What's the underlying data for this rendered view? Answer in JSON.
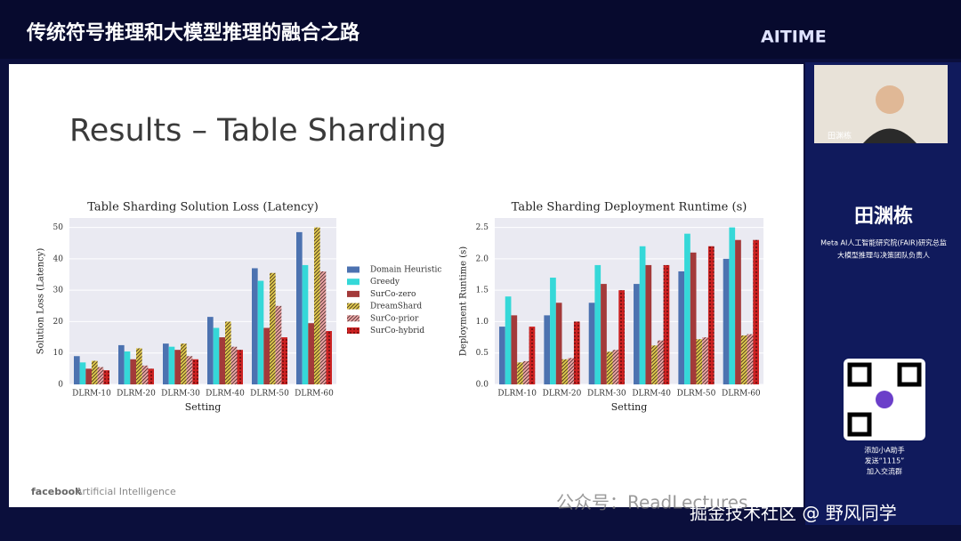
{
  "header": {
    "title": "传统符号推理和大模型推理的融合之路",
    "logo": "AITIME"
  },
  "slide": {
    "title": "Results – Table Sharding",
    "footer_brand": "facebook",
    "footer_text": "Artificial Intelligence"
  },
  "chart_data": [
    {
      "type": "bar",
      "title": "Table Sharding Solution Loss (Latency)",
      "x_label": "Setting",
      "y_label": "Solution Loss (Latency)",
      "categories": [
        "DLRM-10",
        "DLRM-20",
        "DLRM-30",
        "DLRM-40",
        "DLRM-50",
        "DLRM-60"
      ],
      "series": [
        {
          "name": "Domain Heuristic",
          "color": "#4c72b0",
          "values": [
            9,
            12.5,
            13,
            21.5,
            37,
            48.5
          ]
        },
        {
          "name": "Greedy",
          "color": "#35d8d8",
          "values": [
            7,
            10.5,
            12,
            18,
            33,
            38
          ]
        },
        {
          "name": "SurCo-zero",
          "color": "#a33a3a",
          "values": [
            5,
            8,
            11,
            15,
            18,
            19.5
          ]
        },
        {
          "name": "DreamShard",
          "color": "#e2cc4e",
          "hatch": "stripes",
          "values": [
            7.5,
            11.5,
            13,
            20,
            35.5,
            50
          ]
        },
        {
          "name": "SurCo-prior",
          "color": "#f0a8a8",
          "hatch": "stripes",
          "values": [
            5.5,
            6,
            9,
            12,
            25,
            36
          ]
        },
        {
          "name": "SurCo-hybrid",
          "color": "#cc2222",
          "hatch": "dots",
          "values": [
            4.5,
            5,
            8,
            11,
            15,
            17
          ]
        }
      ],
      "ylim": [
        0,
        53
      ],
      "yticks": [
        0,
        10,
        20,
        30,
        40,
        50
      ],
      "legend": "right"
    },
    {
      "type": "bar",
      "title": "Table Sharding Deployment Runtime (s)",
      "x_label": "Setting",
      "y_label": "Deployment Runtime (s)",
      "categories": [
        "DLRM-10",
        "DLRM-20",
        "DLRM-30",
        "DLRM-40",
        "DLRM-50",
        "DLRM-60"
      ],
      "series": [
        {
          "color": "#4c72b0",
          "values": [
            0.92,
            1.1,
            1.3,
            1.6,
            1.8,
            2.0
          ]
        },
        {
          "color": "#35d8d8",
          "values": [
            1.4,
            1.7,
            1.9,
            2.2,
            2.4,
            2.5
          ]
        },
        {
          "color": "#a33a3a",
          "values": [
            1.1,
            1.3,
            1.6,
            1.9,
            2.1,
            2.3
          ]
        },
        {
          "color": "#e2cc4e",
          "hatch": "stripes",
          "values": [
            0.35,
            0.4,
            0.52,
            0.62,
            0.72,
            0.78
          ]
        },
        {
          "color": "#f0a8a8",
          "hatch": "stripes",
          "values": [
            0.37,
            0.42,
            0.55,
            0.7,
            0.75,
            0.8
          ]
        },
        {
          "color": "#cc2222",
          "hatch": "dots",
          "values": [
            0.92,
            1.0,
            1.5,
            1.9,
            2.2,
            2.3
          ]
        }
      ],
      "ylim": [
        0,
        2.65
      ],
      "yticks": [
        {
          "value": 0,
          "label": "0.0"
        },
        0.5,
        {
          "value": 1,
          "label": "1.0"
        },
        1.5,
        {
          "value": 2,
          "label": "2.0"
        },
        2.5
      ]
    }
  ],
  "sidebar": {
    "video_label": "田渊栋",
    "name": "田渊栋",
    "desc": [
      "Meta AI人工智能研究院(FAIR)研究总监",
      "大模型推理与决策团队负责人"
    ],
    "qr_text": [
      "添加小A助手",
      "发送“1115”",
      "加入交流群"
    ]
  },
  "watermark": {
    "wechat": "公众号：ReadLectures",
    "site": "掘金技术社区 @ 野风同学"
  }
}
